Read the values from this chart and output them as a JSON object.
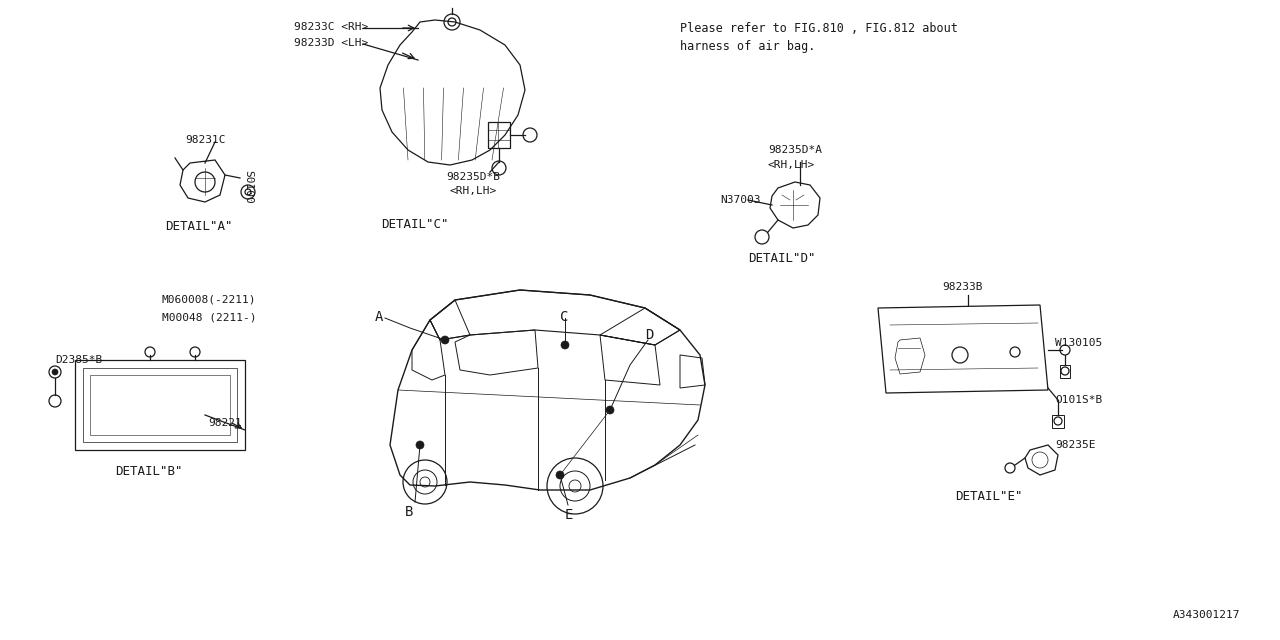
{
  "bg_color": "#ffffff",
  "line_color": "#1a1a1a",
  "font_color": "#1a1a1a",
  "title_note_line1": "Please refer to FIG.810 , FIG.812 about",
  "title_note_line2": "harness of air bag.",
  "diagram_id": "A343001217",
  "font_family": "monospace",
  "figsize": [
    12.8,
    6.4
  ],
  "dpi": 100,
  "lw_main": 0.9,
  "lw_thin": 0.6,
  "fs_part": 8.0,
  "fs_detail": 9.0,
  "fs_note": 8.5,
  "fs_id": 8.0
}
